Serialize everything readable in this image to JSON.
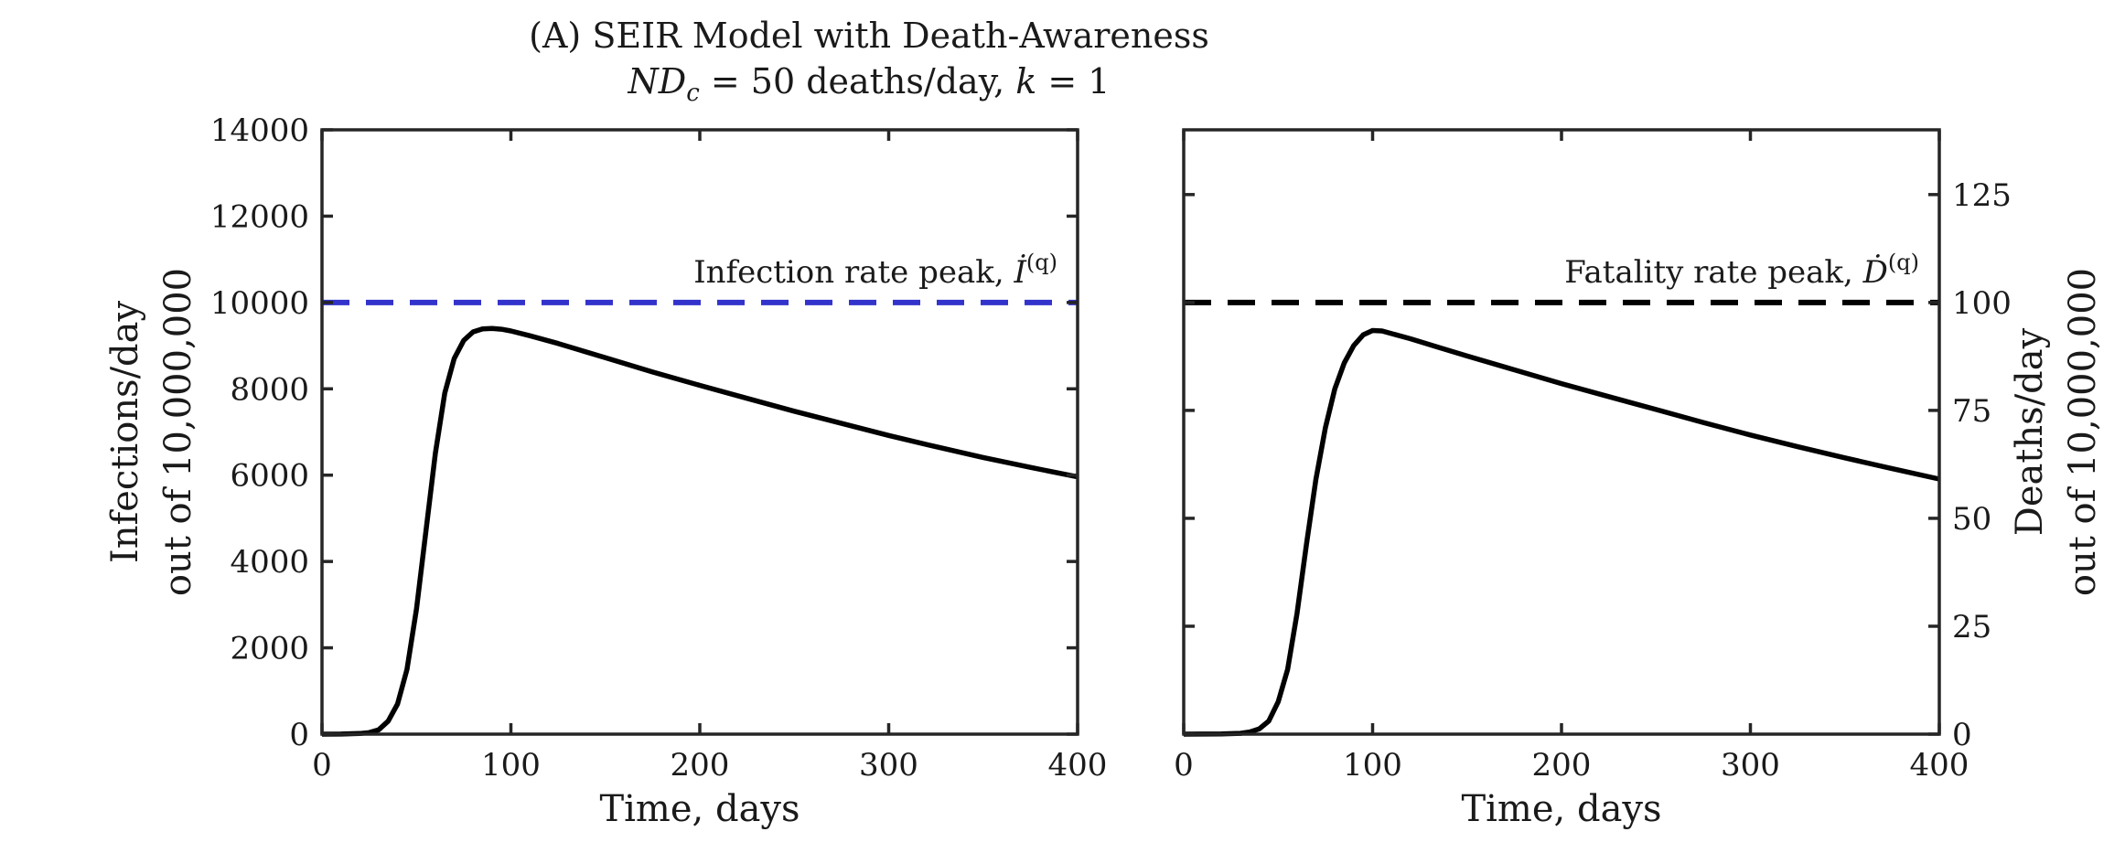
{
  "title": {
    "line1": "(A) SEIR Model with Death-Awareness",
    "line2_main": "ND",
    "line2_sub": "c",
    "line2_rest": " = 50 deaths/day, ",
    "line2_k": "k",
    "line2_end": " = 1"
  },
  "chart_data": [
    {
      "type": "line",
      "xlabel": "Time, days",
      "ylabel": [
        "Infections/day",
        "out of 10,000,000"
      ],
      "xlim": [
        0,
        400
      ],
      "ylim": [
        0,
        14000
      ],
      "xticks": [
        0,
        100,
        200,
        300,
        400
      ],
      "yticks": [
        0,
        2000,
        4000,
        6000,
        8000,
        10000,
        12000,
        14000
      ],
      "y_axis_side": "left",
      "grid": false,
      "series": [
        {
          "color": "#000000",
          "style": "solid",
          "x": [
            0,
            10,
            20,
            25,
            30,
            35,
            40,
            45,
            50,
            55,
            60,
            65,
            70,
            75,
            80,
            85,
            90,
            95,
            100,
            110,
            125,
            150,
            175,
            200,
            225,
            250,
            275,
            300,
            325,
            350,
            375,
            400
          ],
          "y": [
            0,
            3,
            15,
            35,
            100,
            300,
            700,
            1500,
            2900,
            4700,
            6500,
            7900,
            8700,
            9120,
            9320,
            9390,
            9400,
            9380,
            9340,
            9230,
            9050,
            8720,
            8390,
            8080,
            7780,
            7480,
            7200,
            6920,
            6660,
            6410,
            6180,
            5960
          ]
        },
        {
          "color": "#3333cc",
          "style": "dashed",
          "x": [
            0,
            400
          ],
          "y": [
            10000,
            10000
          ]
        }
      ],
      "annotation": {
        "text": "Infection rate peak, ",
        "symbol": "İ",
        "superscript": "(q)"
      }
    },
    {
      "type": "line",
      "xlabel": "Time, days",
      "ylabel": [
        "Deaths/day",
        "out of 10,000,000"
      ],
      "xlim": [
        0,
        400
      ],
      "ylim": [
        0,
        140
      ],
      "xticks": [
        0,
        100,
        200,
        300,
        400
      ],
      "yticks": [
        0,
        25,
        50,
        75,
        100,
        125
      ],
      "y_axis_side": "right",
      "grid": false,
      "series": [
        {
          "color": "#000000",
          "style": "solid",
          "x": [
            0,
            20,
            30,
            35,
            40,
            45,
            50,
            55,
            60,
            65,
            70,
            75,
            80,
            85,
            90,
            95,
            100,
            105,
            110,
            120,
            135,
            150,
            175,
            200,
            225,
            250,
            275,
            300,
            325,
            350,
            375,
            400
          ],
          "y": [
            0,
            0.05,
            0.2,
            0.5,
            1.2,
            3,
            7.5,
            15,
            28,
            44,
            59,
            71,
            80,
            86,
            90,
            92.5,
            93.5,
            93.4,
            92.8,
            91.6,
            89.6,
            87.6,
            84.4,
            81.2,
            78.2,
            75.2,
            72.2,
            69.3,
            66.6,
            64,
            61.5,
            59.1
          ]
        },
        {
          "color": "#000000",
          "style": "dashed",
          "x": [
            0,
            400
          ],
          "y": [
            100,
            100
          ]
        }
      ],
      "annotation": {
        "text": "Fatality rate peak, ",
        "symbol": "Ḋ",
        "superscript": "(q)"
      }
    }
  ]
}
